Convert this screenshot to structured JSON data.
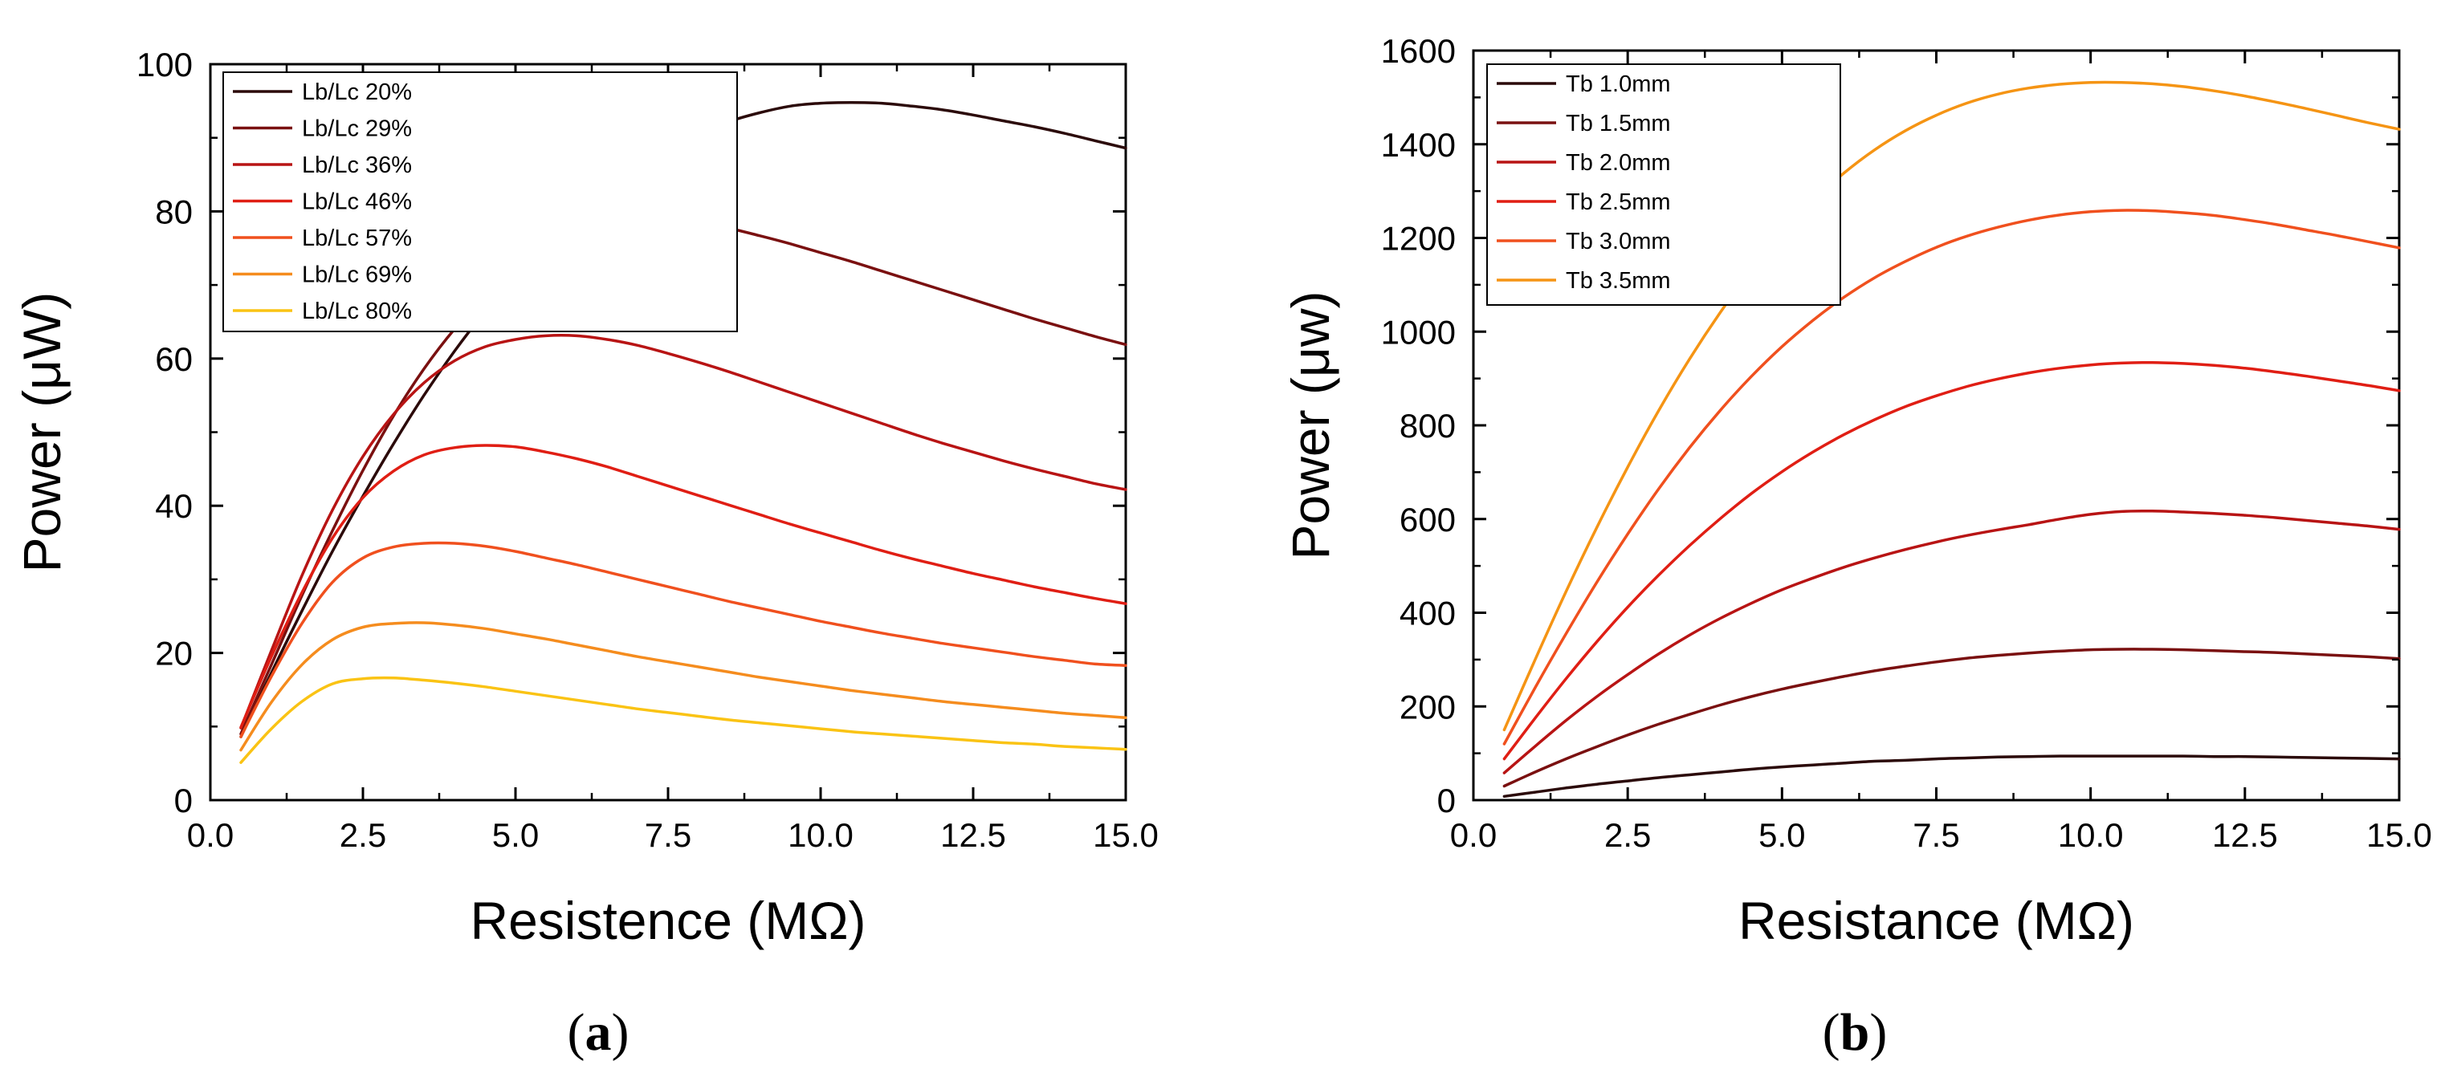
{
  "chart_data": [
    {
      "panel": "a",
      "type": "line",
      "panel_label": "a",
      "xlabel": "Resistence (MΩ)",
      "ylabel": "Power (μW)",
      "xlim": [
        0,
        15
      ],
      "ylim": [
        0,
        100
      ],
      "xticks": [
        0,
        2.5,
        5,
        7.5,
        10,
        12.5,
        15
      ],
      "xtick_labels": [
        "0.0",
        "2.5",
        "5.0",
        "7.5",
        "10.0",
        "12.5",
        "15.0"
      ],
      "yticks": [
        0,
        20,
        40,
        60,
        80,
        100
      ],
      "ytick_labels": [
        "0",
        "20",
        "40",
        "60",
        "80",
        "100"
      ],
      "legend_position": "top-left",
      "x": [
        0.5,
        1,
        1.5,
        2,
        2.5,
        3,
        3.5,
        4,
        4.5,
        5,
        5.5,
        6,
        6.5,
        7,
        7.5,
        8,
        8.5,
        9,
        9.5,
        10,
        10.5,
        11,
        11.5,
        12,
        12.5,
        13,
        13.5,
        14,
        14.5,
        15
      ],
      "series": [
        {
          "name": "Lb/Lc 20%",
          "color": "#2b0a0a",
          "values": [
            8.6,
            17.3,
            25.7,
            33.8,
            41.3,
            48.4,
            55.0,
            61.0,
            66.4,
            71.3,
            75.6,
            79.5,
            82.9,
            85.8,
            88.3,
            90.4,
            92.2,
            93.4,
            94.3,
            94.7,
            94.8,
            94.7,
            94.3,
            93.8,
            93.1,
            92.3,
            91.5,
            90.6,
            89.6,
            88.6
          ]
        },
        {
          "name": "Lb/Lc 29%",
          "color": "#7a1010",
          "values": [
            9.0,
            18.4,
            27.8,
            36.6,
            44.8,
            52.2,
            58.6,
            64.0,
            68.4,
            72.0,
            74.8,
            76.9,
            78.2,
            78.8,
            78.8,
            78.4,
            77.7,
            76.7,
            75.6,
            74.4,
            73.2,
            71.9,
            70.6,
            69.3,
            68.0,
            66.7,
            65.4,
            64.2,
            63.0,
            61.9
          ]
        },
        {
          "name": "Lb/Lc 36%",
          "color": "#b81414",
          "values": [
            9.8,
            20.3,
            30.5,
            39.4,
            46.7,
            52.4,
            56.7,
            59.7,
            61.6,
            62.6,
            63.1,
            63.1,
            62.6,
            61.8,
            60.7,
            59.5,
            58.2,
            56.8,
            55.4,
            54.0,
            52.6,
            51.2,
            49.8,
            48.5,
            47.3,
            46.1,
            45.0,
            44.0,
            43.0,
            42.2
          ]
        },
        {
          "name": "Lb/Lc 46%",
          "color": "#e01e14",
          "values": [
            9.9,
            19.5,
            28.2,
            35.6,
            41.1,
            44.7,
            46.9,
            47.9,
            48.2,
            48.0,
            47.3,
            46.4,
            45.3,
            44.0,
            42.7,
            41.4,
            40.1,
            38.8,
            37.5,
            36.3,
            35.1,
            33.9,
            32.8,
            31.8,
            30.8,
            29.9,
            29.0,
            28.2,
            27.4,
            26.7
          ]
        },
        {
          "name": "Lb/Lc 57%",
          "color": "#f0501e",
          "values": [
            8.6,
            16.8,
            24.0,
            29.6,
            32.9,
            34.4,
            34.9,
            34.9,
            34.5,
            33.8,
            32.9,
            32.0,
            31.0,
            30.0,
            29.0,
            28.0,
            27.0,
            26.1,
            25.2,
            24.3,
            23.5,
            22.7,
            22.0,
            21.3,
            20.7,
            20.1,
            19.5,
            19.0,
            18.5,
            18.3
          ]
        },
        {
          "name": "Lb/Lc 69%",
          "color": "#f58c1e",
          "values": [
            6.8,
            13.3,
            18.4,
            21.8,
            23.5,
            24.0,
            24.1,
            23.8,
            23.3,
            22.6,
            21.9,
            21.1,
            20.3,
            19.5,
            18.8,
            18.1,
            17.4,
            16.7,
            16.1,
            15.5,
            14.9,
            14.4,
            13.9,
            13.4,
            13.0,
            12.6,
            12.2,
            11.8,
            11.5,
            11.2
          ]
        },
        {
          "name": "Lb/Lc 80%",
          "color": "#fac314",
          "values": [
            5.1,
            9.7,
            13.4,
            15.8,
            16.5,
            16.6,
            16.3,
            15.9,
            15.4,
            14.8,
            14.2,
            13.6,
            13.0,
            12.4,
            11.9,
            11.4,
            10.9,
            10.5,
            10.1,
            9.7,
            9.3,
            9.0,
            8.7,
            8.4,
            8.1,
            7.8,
            7.6,
            7.3,
            7.1,
            6.9
          ]
        }
      ]
    },
    {
      "panel": "b",
      "type": "line",
      "panel_label": "b",
      "xlabel": "Resistance (MΩ)",
      "ylabel": "Power (μw)",
      "xlim": [
        0,
        15
      ],
      "ylim": [
        0,
        1600
      ],
      "xticks": [
        0,
        2.5,
        5,
        7.5,
        10,
        12.5,
        15
      ],
      "xtick_labels": [
        "0.0",
        "2.5",
        "5.0",
        "7.5",
        "10.0",
        "12.5",
        "15.0"
      ],
      "yticks": [
        0,
        200,
        400,
        600,
        800,
        1000,
        1200,
        1400,
        1600
      ],
      "ytick_labels": [
        "0",
        "200",
        "400",
        "600",
        "800",
        "1000",
        "1200",
        "1400",
        "1600"
      ],
      "legend_position": "top-left",
      "x": [
        0.5,
        1,
        1.5,
        2,
        2.5,
        3,
        3.5,
        4,
        4.5,
        5,
        5.5,
        6,
        6.5,
        7,
        7.5,
        8,
        8.5,
        9,
        9.5,
        10,
        10.5,
        11,
        11.5,
        12,
        12.5,
        13,
        13.5,
        14,
        14.5,
        15
      ],
      "series": [
        {
          "name": "Tb 1.0mm",
          "color": "#2b0a0a",
          "values": [
            8,
            17,
            26,
            34,
            41,
            48,
            54,
            60,
            66,
            71,
            75,
            79,
            83,
            85,
            88,
            90,
            92,
            93,
            94,
            94,
            94,
            94,
            94,
            93,
            93,
            92,
            91,
            90,
            89,
            88
          ]
        },
        {
          "name": "Tb 1.5mm",
          "color": "#7a1010",
          "values": [
            30,
            60,
            88,
            114,
            139,
            162,
            183,
            203,
            221,
            237,
            251,
            264,
            276,
            286,
            295,
            303,
            309,
            314,
            318,
            321,
            322,
            322,
            321,
            319,
            317,
            315,
            312,
            309,
            306,
            302
          ]
        },
        {
          "name": "Tb 2.0mm",
          "color": "#b81414",
          "values": [
            58,
            115,
            170,
            221,
            268,
            312,
            352,
            388,
            420,
            449,
            474,
            497,
            517,
            535,
            551,
            565,
            577,
            588,
            600,
            610,
            616,
            617,
            615,
            612,
            608,
            603,
            597,
            591,
            585,
            578
          ]
        },
        {
          "name": "Tb 2.5mm",
          "color": "#e01e14",
          "values": [
            88,
            175,
            259,
            338,
            412,
            480,
            543,
            601,
            654,
            701,
            743,
            780,
            812,
            840,
            863,
            883,
            899,
            912,
            922,
            929,
            933,
            934,
            932,
            928,
            922,
            914,
            905,
            895,
            885,
            874
          ]
        },
        {
          "name": "Tb 3.0mm",
          "color": "#f0501e",
          "values": [
            120,
            240,
            355,
            465,
            568,
            664,
            752,
            832,
            904,
            968,
            1024,
            1073,
            1115,
            1150,
            1180,
            1204,
            1223,
            1238,
            1249,
            1256,
            1259,
            1258,
            1254,
            1248,
            1239,
            1229,
            1217,
            1205,
            1192,
            1179
          ]
        },
        {
          "name": "Tb 3.5mm",
          "color": "#f59414",
          "values": [
            150,
            300,
            445,
            582,
            711,
            831,
            941,
            1041,
            1131,
            1210,
            1279,
            1338,
            1388,
            1429,
            1462,
            1488,
            1507,
            1520,
            1528,
            1532,
            1532,
            1529,
            1523,
            1514,
            1503,
            1490,
            1476,
            1461,
            1446,
            1432
          ]
        }
      ]
    }
  ]
}
